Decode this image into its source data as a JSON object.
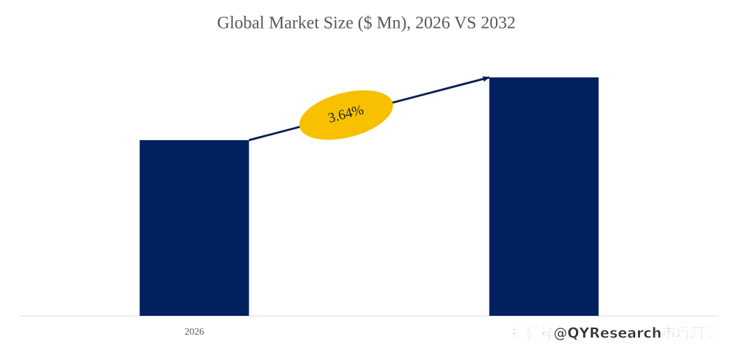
{
  "chart_data": {
    "type": "bar",
    "title": "Global Market Size ($ Mn), 2026 VS 2032",
    "categories": [
      "2026",
      null
    ],
    "values": [
      252,
      342
    ],
    "color": "#002060",
    "ylim": [
      0,
      380
    ],
    "annotation": "3.64%",
    "annotation_color": "#f7c000",
    "watermark": "搜狐号@QYResearch市场洞察"
  }
}
